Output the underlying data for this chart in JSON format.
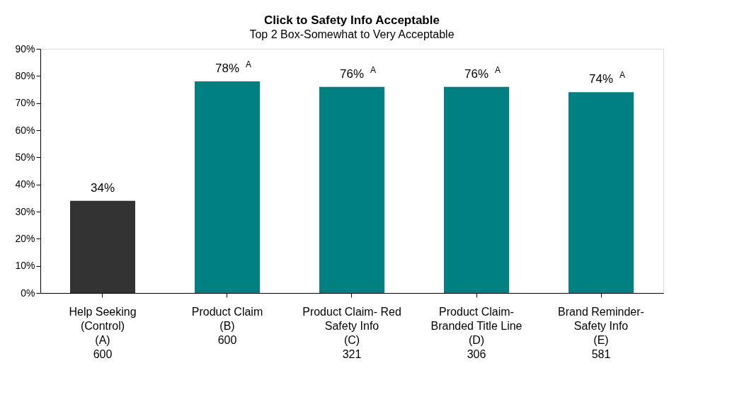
{
  "chart_data": {
    "type": "bar",
    "title": "Click to Safety Info Acceptable",
    "subtitle": "Top 2 Box-Somewhat to Very Acceptable",
    "categories": [
      "Help Seeking\n(Control)\n\n(A)\n\n600",
      "Product Claim\n\n\n(B)\n\n600",
      "Product Claim- Red\nSafety Info\n\n(C)\n\n321",
      "Product Claim-\nBranded Title Line\n\n(D)\n\n306",
      "Brand Reminder-\nSafety Info\n\n(E)\n\n581"
    ],
    "values": [
      34,
      78,
      76,
      76,
      74
    ],
    "colors": [
      "#333333",
      "#008080",
      "#008080",
      "#008080",
      "#008080"
    ],
    "value_labels": [
      "34%",
      "78%",
      "76%",
      "76%",
      "74%"
    ],
    "annotations": [
      {
        "text": "A",
        "x": "Product Claim\n\n\n(B)\n\n600",
        "y": 78
      },
      {
        "text": "A",
        "x": "Product Claim- Red\nSafety Info\n\n(C)\n\n321",
        "y": 76
      },
      {
        "text": "A",
        "x": "Product Claim-\nBranded Title Line\n\n(D)\n\n306",
        "y": 76
      },
      {
        "text": "A",
        "x": "Brand Reminder-\nSafety Info\n\n(E)\n\n581",
        "y": 74
      }
    ],
    "ylim": [
      0,
      90
    ],
    "yticks": [
      {
        "value": 0,
        "label": "0%"
      },
      {
        "value": 10,
        "label": "10%"
      },
      {
        "value": 20,
        "label": "20%"
      },
      {
        "value": 30,
        "label": "30%"
      },
      {
        "value": 40,
        "label": "40%"
      },
      {
        "value": 50,
        "label": "50%"
      },
      {
        "value": 60,
        "label": "60%"
      },
      {
        "value": 70,
        "label": "70%"
      },
      {
        "value": 80,
        "label": "80%"
      },
      {
        "value": 90,
        "label": "90%"
      }
    ],
    "grid": false
  }
}
